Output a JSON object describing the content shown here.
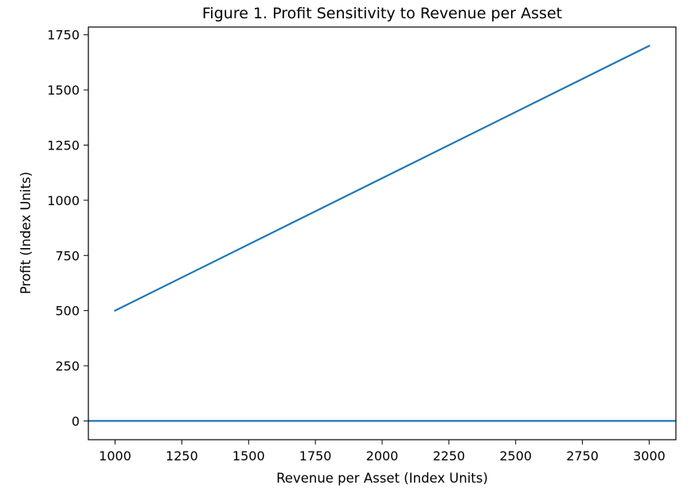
{
  "chart_data": {
    "type": "line",
    "title": "Figure 1. Profit Sensitivity to Revenue per Asset",
    "xlabel": "Revenue per Asset (Index Units)",
    "ylabel": "Profit (Index Units)",
    "xlim": [
      900,
      3100
    ],
    "ylim": [
      -85,
      1785
    ],
    "xticks": [
      1000,
      1250,
      1500,
      1750,
      2000,
      2250,
      2500,
      2750,
      3000
    ],
    "yticks": [
      0,
      250,
      500,
      750,
      1000,
      1250,
      1500,
      1750
    ],
    "series": [
      {
        "x": [
          1000,
          3000
        ],
        "y": [
          500,
          1700
        ],
        "color": "#1f77b4"
      }
    ],
    "reference_lines": [
      {
        "axis": "y",
        "value": 0,
        "color": "#1f77b4"
      }
    ],
    "grid": false,
    "legend": "none"
  }
}
